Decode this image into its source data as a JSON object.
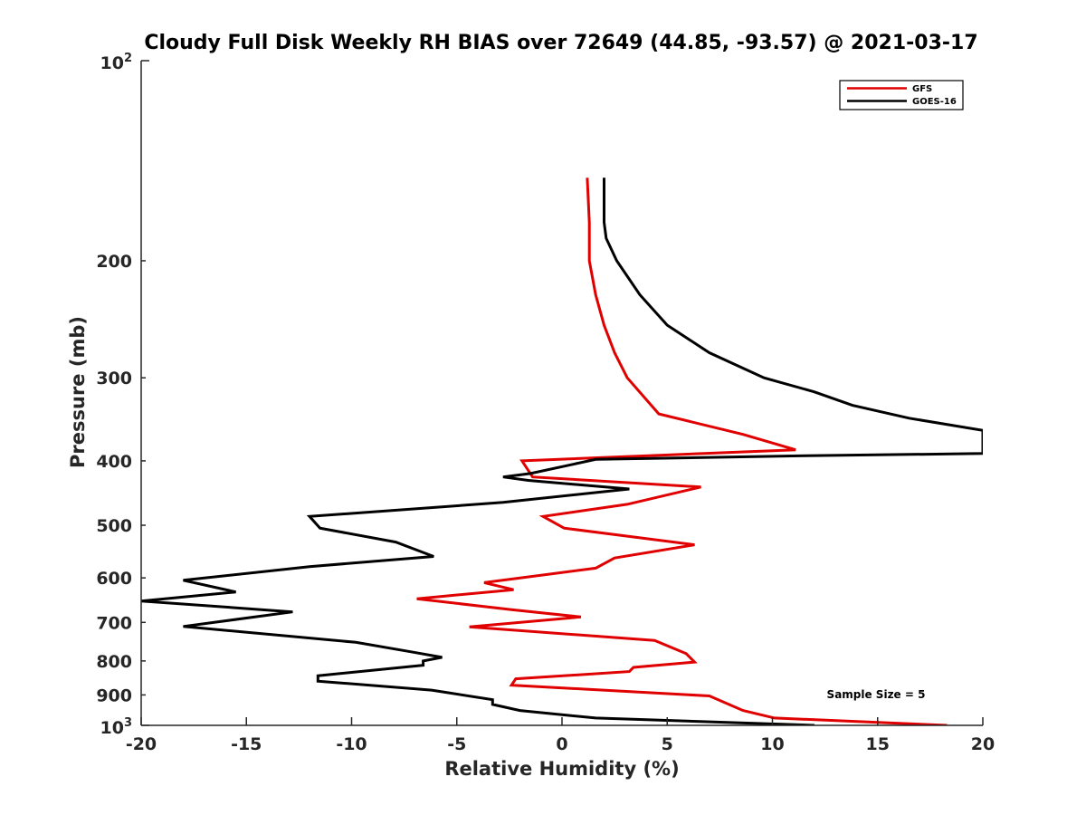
{
  "chart_data": {
    "type": "line",
    "title": "Cloudy Full Disk Weekly RH BIAS over 72649 (44.85, -93.57) @ 2021-03-17",
    "xlabel": "Relative Humidity (%)",
    "ylabel": "Pressure (mb)",
    "xlim": [
      -20,
      20
    ],
    "ylim": [
      100,
      1000
    ],
    "y_scale": "log",
    "y_reversed": true,
    "grid": false,
    "legend_position": "top-right",
    "x_ticks": [
      -20,
      -15,
      -10,
      -5,
      0,
      5,
      10,
      15,
      20
    ],
    "x_tick_labels": [
      "-20",
      "-15",
      "-10",
      "-5",
      "0",
      "5",
      "10",
      "15",
      "20"
    ],
    "y_ticks": [
      200,
      300,
      400,
      500,
      600,
      700,
      800,
      900
    ],
    "y_tick_labels": [
      "200",
      "300",
      "400",
      "500",
      "600",
      "700",
      "800",
      "900"
    ],
    "y_end_labels": [
      {
        "pressure": 100,
        "base": "10",
        "exp": "2"
      },
      {
        "pressure": 1000,
        "base": "10",
        "exp": "3"
      }
    ],
    "annotation": "Sample Size = 5",
    "series": [
      {
        "name": "GFS",
        "color": "#e00000",
        "points": [
          [
            1.2,
            150
          ],
          [
            1.3,
            175
          ],
          [
            1.3,
            200
          ],
          [
            1.6,
            225
          ],
          [
            2.0,
            250
          ],
          [
            2.5,
            275
          ],
          [
            3.1,
            300
          ],
          [
            4.6,
            340
          ],
          [
            8.6,
            365
          ],
          [
            11.1,
            385
          ],
          [
            -1.9,
            400
          ],
          [
            -1.4,
            423
          ],
          [
            6.6,
            438
          ],
          [
            3.1,
            465
          ],
          [
            -0.9,
            485
          ],
          [
            0.1,
            505
          ],
          [
            6.3,
            535
          ],
          [
            2.5,
            560
          ],
          [
            1.6,
            580
          ],
          [
            -3.7,
            610
          ],
          [
            -2.3,
            625
          ],
          [
            -6.9,
            645
          ],
          [
            -2.4,
            670
          ],
          [
            0.9,
            687
          ],
          [
            -4.4,
            711
          ],
          [
            4.4,
            745
          ],
          [
            5.9,
            780
          ],
          [
            6.3,
            803
          ],
          [
            3.4,
            818
          ],
          [
            3.2,
            830
          ],
          [
            -2.2,
            851
          ],
          [
            -2.4,
            870
          ],
          [
            7.0,
            903
          ],
          [
            8.6,
            950
          ],
          [
            10.1,
            975
          ],
          [
            18.3,
            1000
          ]
        ]
      },
      {
        "name": "GOES-16",
        "color": "#000000",
        "points": [
          [
            2.0,
            150
          ],
          [
            2.0,
            175
          ],
          [
            2.1,
            185
          ],
          [
            2.6,
            200
          ],
          [
            3.7,
            225
          ],
          [
            5.0,
            250
          ],
          [
            7.0,
            275
          ],
          [
            9.6,
            300
          ],
          [
            12.0,
            315
          ],
          [
            13.8,
            330
          ],
          [
            16.5,
            345
          ],
          [
            20.0,
            360
          ],
          [
            20.0,
            390
          ],
          [
            11.6,
            393
          ],
          [
            1.6,
            398
          ],
          [
            -1.5,
            418
          ],
          [
            -2.8,
            423
          ],
          [
            -1.6,
            428
          ],
          [
            3.2,
            441
          ],
          [
            -2.8,
            462
          ],
          [
            -12.0,
            485
          ],
          [
            -11.5,
            505
          ],
          [
            -7.9,
            530
          ],
          [
            -6.1,
            557
          ],
          [
            -12.0,
            577
          ],
          [
            -18.0,
            605
          ],
          [
            -15.5,
            630
          ],
          [
            -20.0,
            650
          ],
          [
            -12.8,
            675
          ],
          [
            -18.0,
            710
          ],
          [
            -9.8,
            750
          ],
          [
            -7.2,
            775
          ],
          [
            -5.7,
            790
          ],
          [
            -6.6,
            800
          ],
          [
            -6.6,
            812
          ],
          [
            -11.6,
            842
          ],
          [
            -11.6,
            858
          ],
          [
            -6.2,
            885
          ],
          [
            -3.3,
            915
          ],
          [
            -3.3,
            930
          ],
          [
            -2.0,
            950
          ],
          [
            1.6,
            975
          ],
          [
            12.0,
            1000
          ]
        ]
      }
    ]
  }
}
